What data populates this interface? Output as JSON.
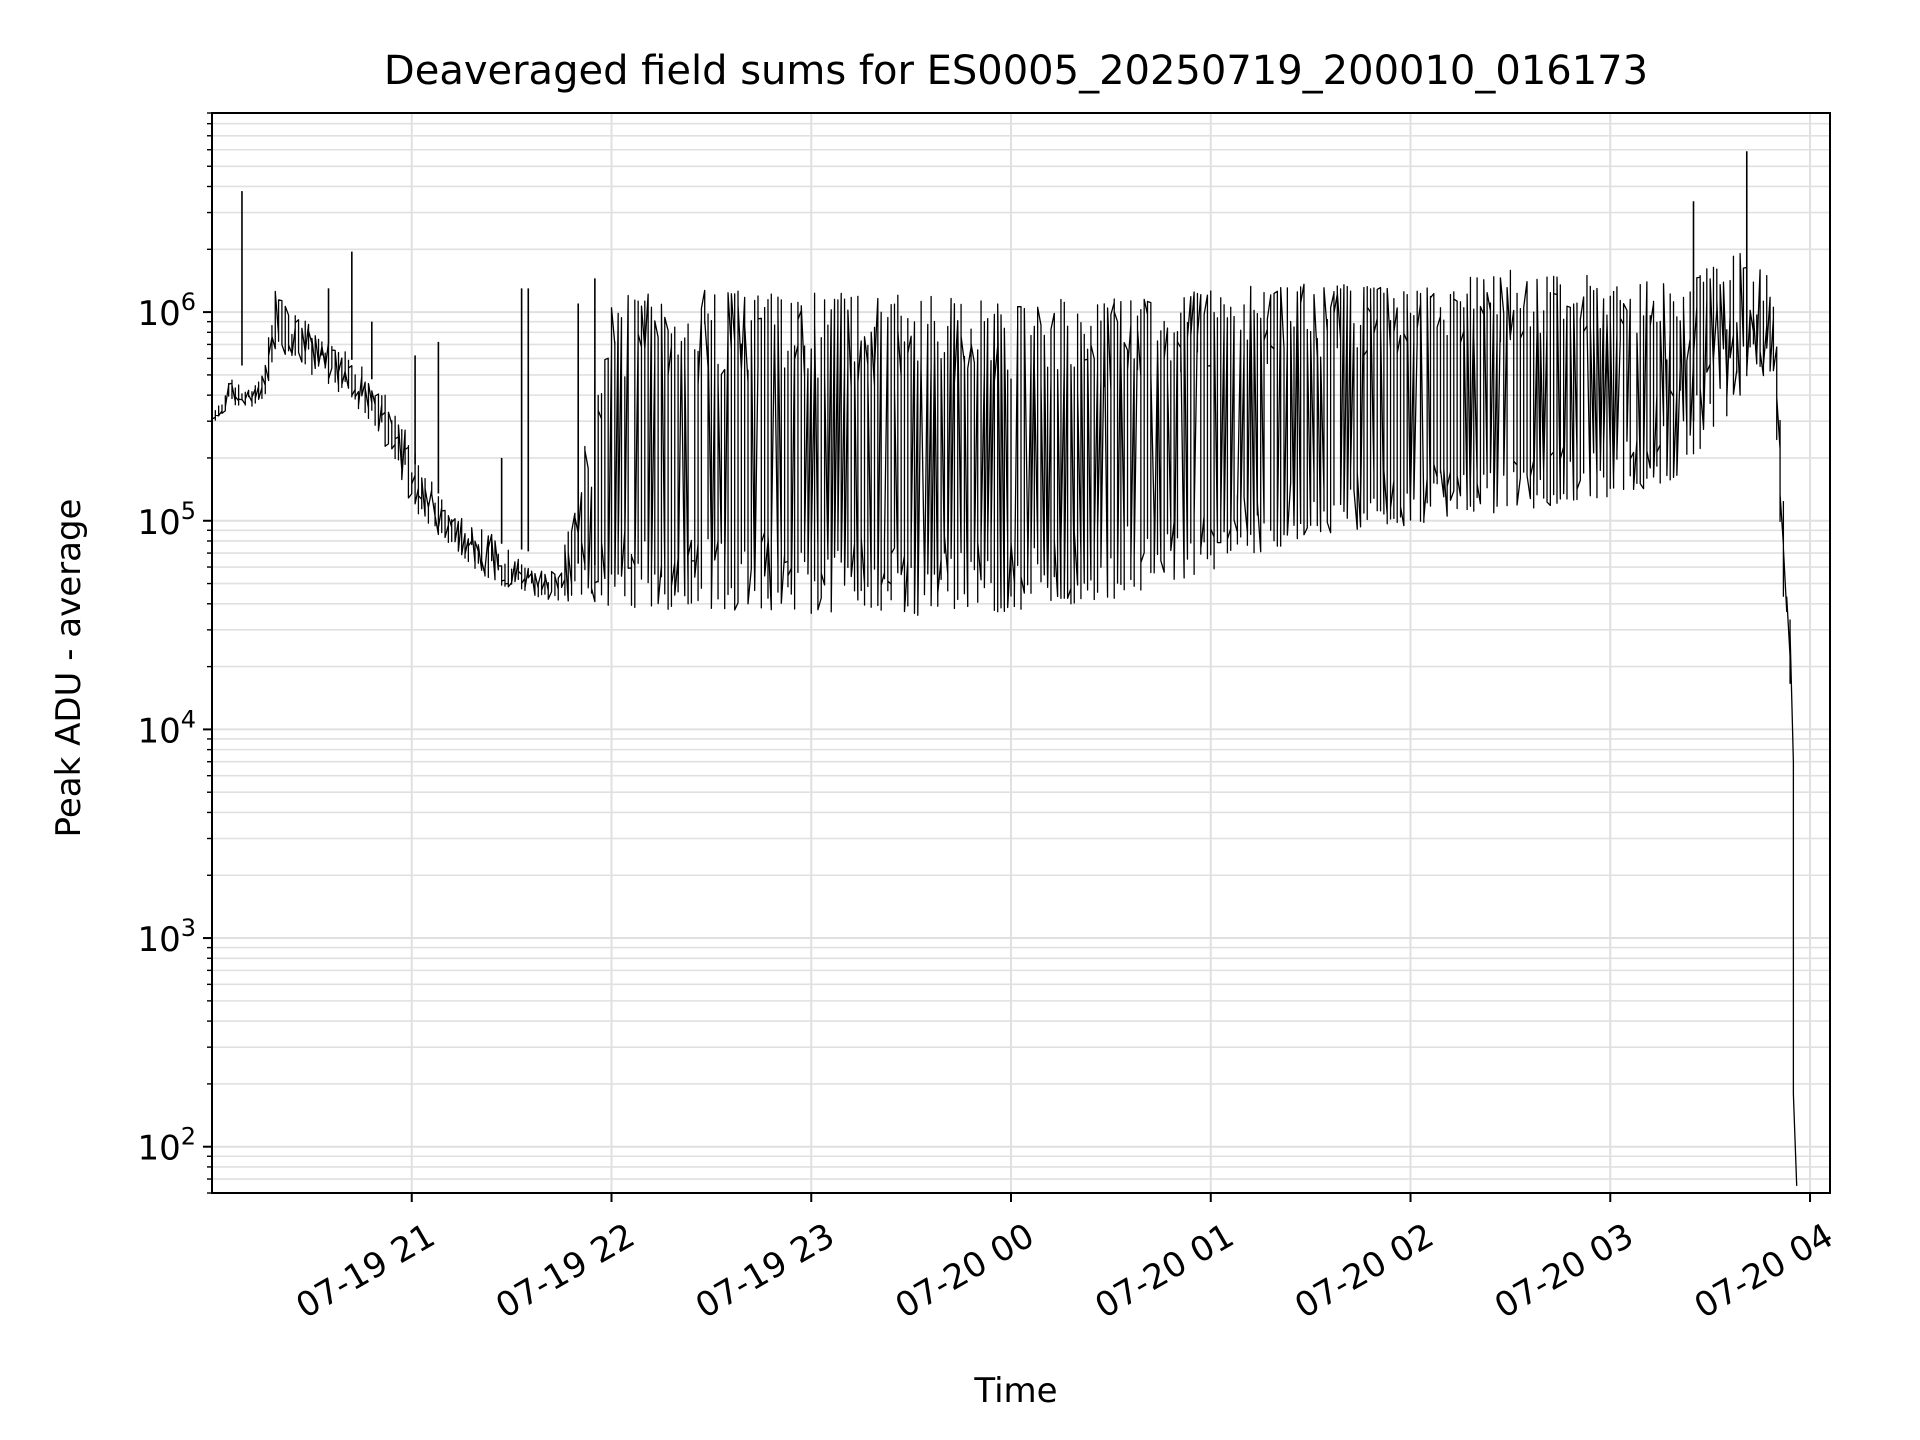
{
  "chart_data": {
    "type": "line",
    "title": "Deaveraged field sums for ES0005_20250719_200010_016173",
    "xlabel": "Time",
    "ylabel": "Peak ADU - average",
    "yscale": "log",
    "grid": true,
    "line_color": "#000000",
    "grid_color": "#e0e0e0",
    "xlim": [
      "2025-07-19 20:00",
      "2025-07-20 04:06"
    ],
    "ylim": [
      60,
      9000000
    ],
    "x_ticks": [
      {
        "at": "2025-07-19 21:00",
        "label": "07-19 21"
      },
      {
        "at": "2025-07-19 22:00",
        "label": "07-19 22"
      },
      {
        "at": "2025-07-19 23:00",
        "label": "07-19 23"
      },
      {
        "at": "2025-07-20 00:00",
        "label": "07-20 00"
      },
      {
        "at": "2025-07-20 01:00",
        "label": "07-20 01"
      },
      {
        "at": "2025-07-20 02:00",
        "label": "07-20 02"
      },
      {
        "at": "2025-07-20 03:00",
        "label": "07-20 03"
      },
      {
        "at": "2025-07-20 04:00",
        "label": "07-20 04"
      }
    ],
    "y_ticks": [
      {
        "value": 100,
        "base": "10",
        "exp": "2"
      },
      {
        "value": 1000,
        "base": "10",
        "exp": "3"
      },
      {
        "value": 10000,
        "base": "10",
        "exp": "4"
      },
      {
        "value": 100000,
        "base": "10",
        "exp": "5"
      },
      {
        "value": 1000000,
        "base": "10",
        "exp": "6"
      }
    ],
    "series": [
      {
        "upper": {
          "x": [
            "2025-07-19 20:00",
            "2025-07-19 20:06",
            "2025-07-19 20:12",
            "2025-07-19 20:16",
            "2025-07-19 20:20",
            "2025-07-19 20:30",
            "2025-07-19 20:40",
            "2025-07-19 20:50",
            "2025-07-19 20:58",
            "2025-07-19 21:03",
            "2025-07-19 21:12",
            "2025-07-19 21:25",
            "2025-07-19 21:35",
            "2025-07-19 21:45",
            "2025-07-19 22:00",
            "2025-07-19 22:30",
            "2025-07-19 23:00",
            "2025-07-19 23:30",
            "2025-07-20 00:00",
            "2025-07-20 00:30",
            "2025-07-20 01:00",
            "2025-07-20 01:30",
            "2025-07-20 02:00",
            "2025-07-20 02:30",
            "2025-07-20 03:00",
            "2025-07-20 03:20",
            "2025-07-20 03:35",
            "2025-07-20 03:42",
            "2025-07-20 03:47",
            "2025-07-20 03:50",
            "2025-07-20 03:52",
            "2025-07-20 03:54",
            "2025-07-20 03:55",
            "2025-07-20 03:56"
          ],
          "y": [
            300000,
            480000,
            420000,
            500000,
            1300000,
            850000,
            650000,
            480000,
            280000,
            190000,
            110000,
            85000,
            62000,
            56000,
            1200000,
            1300000,
            1250000,
            1200000,
            1150000,
            1150000,
            1300000,
            1400000,
            1300000,
            1600000,
            1500000,
            1400000,
            1800000,
            2200000,
            1600000,
            1000000,
            200000,
            60000,
            30000,
            100
          ]
        },
        "lower": {
          "x": [
            "2025-07-19 20:00",
            "2025-07-19 20:06",
            "2025-07-19 20:12",
            "2025-07-19 20:16",
            "2025-07-19 20:20",
            "2025-07-19 20:30",
            "2025-07-19 20:40",
            "2025-07-19 20:50",
            "2025-07-19 20:58",
            "2025-07-19 21:03",
            "2025-07-19 21:12",
            "2025-07-19 21:25",
            "2025-07-19 21:35",
            "2025-07-19 21:45",
            "2025-07-19 22:00",
            "2025-07-19 22:30",
            "2025-07-19 23:00",
            "2025-07-19 23:30",
            "2025-07-20 00:00",
            "2025-07-20 00:30",
            "2025-07-20 01:00",
            "2025-07-20 01:30",
            "2025-07-20 02:00",
            "2025-07-20 02:30",
            "2025-07-20 03:00",
            "2025-07-20 03:20",
            "2025-07-20 03:35",
            "2025-07-20 03:42",
            "2025-07-20 03:47",
            "2025-07-20 03:50",
            "2025-07-20 03:52",
            "2025-07-20 03:54",
            "2025-07-20 03:55",
            "2025-07-20 03:56"
          ],
          "y": [
            280000,
            350000,
            350000,
            380000,
            600000,
            500000,
            400000,
            280000,
            150000,
            100000,
            75000,
            50000,
            45000,
            40000,
            38000,
            37000,
            36000,
            35000,
            36000,
            40000,
            55000,
            85000,
            95000,
            110000,
            130000,
            150000,
            300000,
            400000,
            500000,
            400000,
            60000,
            20000,
            5000,
            60
          ]
        },
        "spikes": [
          {
            "x": "2025-07-19 20:09",
            "y": 3800000
          },
          {
            "x": "2025-07-19 20:35",
            "y": 1300000
          },
          {
            "x": "2025-07-19 20:42",
            "y": 1950000
          },
          {
            "x": "2025-07-19 20:48",
            "y": 900000
          },
          {
            "x": "2025-07-19 21:01",
            "y": 620000
          },
          {
            "x": "2025-07-19 21:08",
            "y": 720000
          },
          {
            "x": "2025-07-19 21:27",
            "y": 200000
          },
          {
            "x": "2025-07-19 21:33",
            "y": 1300000
          },
          {
            "x": "2025-07-19 21:35",
            "y": 1300000
          },
          {
            "x": "2025-07-19 21:50",
            "y": 1100000
          },
          {
            "x": "2025-07-19 21:55",
            "y": 1450000
          },
          {
            "x": "2025-07-20 03:25",
            "y": 3400000
          },
          {
            "x": "2025-07-20 03:41",
            "y": 5900000
          }
        ]
      }
    ]
  }
}
